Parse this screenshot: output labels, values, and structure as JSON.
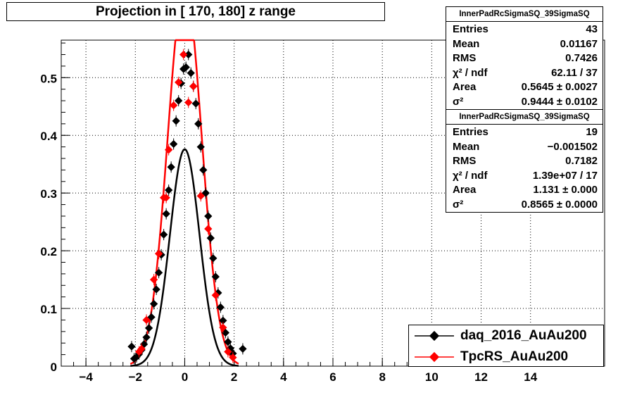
{
  "title": "Projection in [ 170, 180] z range",
  "stats_boxes": [
    {
      "name": "InnerPadRcSigmaSQ_39SigmaSQ",
      "rows": [
        {
          "label": "Entries",
          "value": "43"
        },
        {
          "label": "Mean",
          "value": "0.01167"
        },
        {
          "label": "RMS",
          "value": "0.7426"
        },
        {
          "label": "χ² / ndf",
          "value": "62.11 / 37"
        },
        {
          "label": "Area",
          "value": "0.5645 ± 0.0027"
        },
        {
          "label": "σ²",
          "value": "0.9444 ± 0.0102"
        }
      ]
    },
    {
      "name": "InnerPadRcSigmaSQ_39SigmaSQ",
      "rows": [
        {
          "label": "Entries",
          "value": "19"
        },
        {
          "label": "Mean",
          "value": "−0.001502"
        },
        {
          "label": "RMS",
          "value": "0.7182"
        },
        {
          "label": "χ² / ndf",
          "value": "1.39e+07 / 17"
        },
        {
          "label": "Area",
          "value": "1.131 ± 0.000"
        },
        {
          "label": "σ²",
          "value": "0.8565 ± 0.0000"
        }
      ]
    }
  ],
  "legend": [
    {
      "label": "daq_2016_AuAu200",
      "color": "#000000"
    },
    {
      "label": "TpcRS_AuAu200",
      "color": "#ff0000"
    }
  ],
  "chart_data": {
    "type": "scatter",
    "title": "Projection in [ 170, 180] z range",
    "xlim": [
      -5,
      17
    ],
    "ylim": [
      0,
      0.565
    ],
    "x_ticks": [
      -4,
      -2,
      0,
      2,
      4,
      6,
      8,
      10,
      12,
      14
    ],
    "y_ticks": [
      0,
      0.1,
      0.2,
      0.3,
      0.4,
      0.5
    ],
    "x_tick_labels": [
      "−4",
      "−2",
      "0",
      "2",
      "4",
      "6",
      "8",
      "10",
      "12",
      "14"
    ],
    "y_tick_labels": [
      "0",
      "0.1",
      "0.2",
      "0.3",
      "0.4",
      "0.5"
    ],
    "grid": true,
    "legend_position": "bottom-right",
    "series": [
      {
        "name": "daq_2016_AuAu200",
        "color": "#000000",
        "points": [
          [
            -2.15,
            0.034
          ],
          [
            -2.05,
            0.013
          ],
          [
            -1.95,
            0.016
          ],
          [
            -1.85,
            0.021
          ],
          [
            -1.75,
            0.028
          ],
          [
            -1.65,
            0.038
          ],
          [
            -1.55,
            0.05
          ],
          [
            -1.45,
            0.066
          ],
          [
            -1.35,
            0.085
          ],
          [
            -1.25,
            0.108
          ],
          [
            -1.15,
            0.133
          ],
          [
            -1.05,
            0.162
          ],
          [
            -0.95,
            0.193
          ],
          [
            -0.85,
            0.228
          ],
          [
            -0.75,
            0.264
          ],
          [
            -0.65,
            0.305
          ],
          [
            -0.55,
            0.345
          ],
          [
            -0.45,
            0.385
          ],
          [
            -0.35,
            0.425
          ],
          [
            -0.25,
            0.46
          ],
          [
            -0.15,
            0.49
          ],
          [
            -0.05,
            0.515
          ],
          [
            0.05,
            0.518
          ],
          [
            0.15,
            0.54
          ],
          [
            0.25,
            0.508
          ],
          [
            0.35,
            0.485
          ],
          [
            0.45,
            0.455
          ],
          [
            0.55,
            0.42
          ],
          [
            0.65,
            0.38
          ],
          [
            0.75,
            0.34
          ],
          [
            0.85,
            0.3
          ],
          [
            0.95,
            0.26
          ],
          [
            1.05,
            0.222
          ],
          [
            1.15,
            0.187
          ],
          [
            1.25,
            0.155
          ],
          [
            1.35,
            0.127
          ],
          [
            1.45,
            0.102
          ],
          [
            1.55,
            0.079
          ],
          [
            1.65,
            0.058
          ],
          [
            1.75,
            0.042
          ],
          [
            1.85,
            0.031
          ],
          [
            1.95,
            0.022
          ],
          [
            2.35,
            0.03
          ]
        ]
      },
      {
        "name": "TpcRS_AuAu200",
        "color": "#ff0000",
        "points": [
          [
            -1.85,
            0.025
          ],
          [
            -1.75,
            0.03
          ],
          [
            -1.55,
            0.08
          ],
          [
            -1.25,
            0.15
          ],
          [
            -1.05,
            0.195
          ],
          [
            -0.85,
            0.292
          ],
          [
            -0.65,
            0.375
          ],
          [
            -0.45,
            0.452
          ],
          [
            -0.25,
            0.492
          ],
          [
            -0.05,
            0.54
          ],
          [
            0.15,
            0.457
          ],
          [
            0.35,
            0.485
          ],
          [
            0.65,
            0.295
          ],
          [
            0.95,
            0.238
          ],
          [
            1.25,
            0.123
          ],
          [
            1.55,
            0.067
          ],
          [
            1.75,
            0.025
          ],
          [
            1.95,
            0.015
          ],
          [
            -0.75,
            0.292
          ]
        ]
      }
    ]
  }
}
